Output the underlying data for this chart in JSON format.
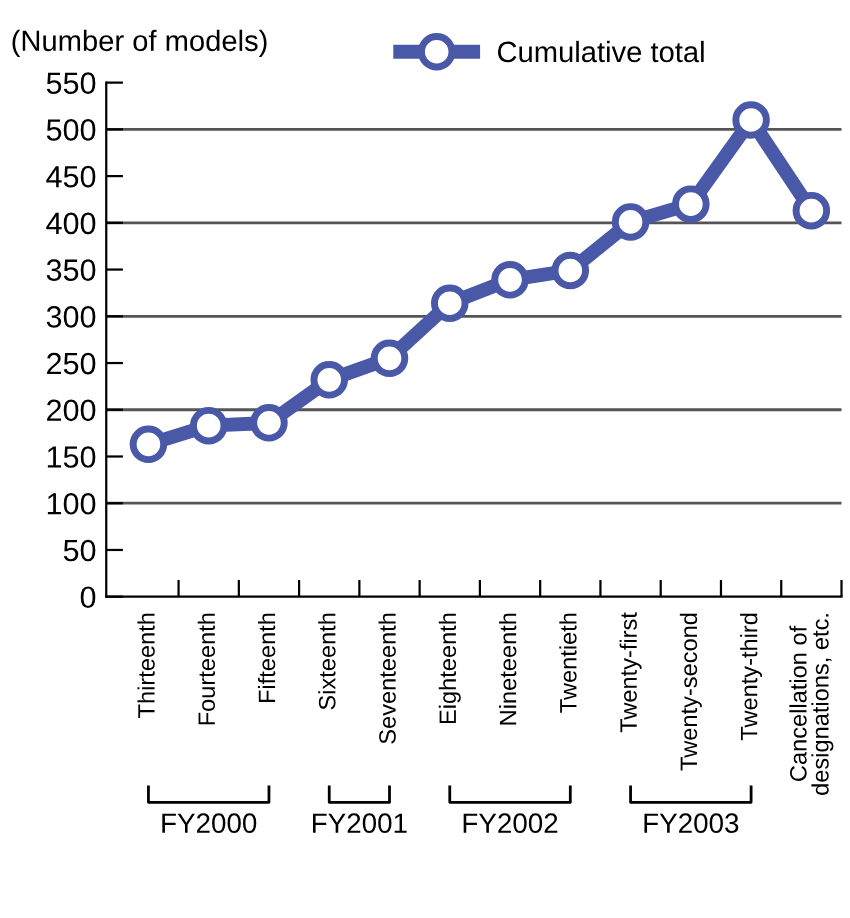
{
  "chart_data": {
    "type": "line",
    "ylabel": "(Number of models)",
    "categories": [
      "Thirteenth",
      "Fourteenth",
      "Fifteenth",
      "Sixteenth",
      "Seventeenth",
      "Eighteenth",
      "Nineteenth",
      "Twentieth",
      "Twenty-first",
      "Twenty-second",
      "Twenty-third",
      "Cancellation of\ndesignations, etc."
    ],
    "series": [
      {
        "name": "Cumulative total",
        "color": "#4a58a8",
        "values": [
          163,
          183,
          186,
          232,
          255,
          314,
          339,
          349,
          401,
          420,
          510,
          413
        ]
      }
    ],
    "ylim": [
      0,
      550
    ],
    "yticks": [
      0,
      50,
      100,
      150,
      200,
      250,
      300,
      350,
      400,
      450,
      500,
      550
    ],
    "grid": "y",
    "legend": "top",
    "marker": "circle",
    "line_style": "solid",
    "annotations": [
      "FY2000",
      "FY2001",
      "FY2002",
      "FY2003"
    ]
  }
}
